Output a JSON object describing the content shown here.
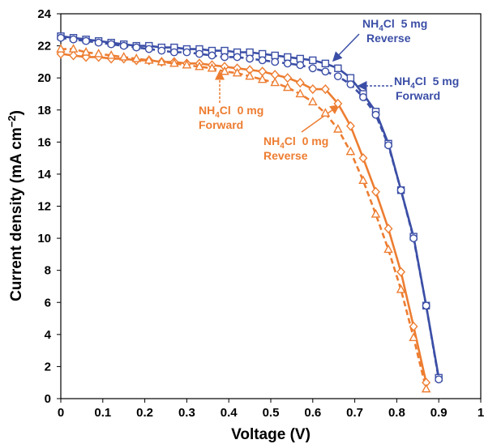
{
  "chart_data": {
    "type": "line",
    "x_label": "Voltage (V)",
    "y_label": [
      "Current density (mA cm",
      "−2",
      ")"
    ],
    "xlim": [
      0,
      1
    ],
    "xticks": [
      0,
      0.1,
      0.2,
      0.3,
      0.4,
      0.5,
      0.6,
      0.7,
      0.8,
      0.9,
      1
    ],
    "ylim": [
      0,
      24
    ],
    "yticks": [
      0,
      2,
      4,
      6,
      8,
      10,
      12,
      14,
      16,
      18,
      20,
      22,
      24
    ],
    "series": [
      {
        "marker": "square",
        "dash": false,
        "color": "#3b4ea6",
        "x": [
          0,
          0.03,
          0.06,
          0.09,
          0.12,
          0.15,
          0.18,
          0.21,
          0.24,
          0.27,
          0.3,
          0.33,
          0.36,
          0.39,
          0.42,
          0.45,
          0.48,
          0.51,
          0.54,
          0.57,
          0.6,
          0.63,
          0.66,
          0.69,
          0.72,
          0.75,
          0.78,
          0.81,
          0.84,
          0.87,
          0.9
        ],
        "values": [
          22.6,
          22.5,
          22.4,
          22.3,
          22.2,
          22.1,
          22.0,
          22.0,
          21.9,
          21.9,
          21.8,
          21.8,
          21.7,
          21.7,
          21.6,
          21.6,
          21.5,
          21.4,
          21.3,
          21.2,
          21.1,
          20.9,
          20.6,
          20.0,
          19.0,
          17.9,
          15.9,
          13.0,
          10.1,
          5.8,
          1.3
        ]
      },
      {
        "marker": "circle",
        "dash": true,
        "color": "#3b4ea6",
        "x": [
          0,
          0.03,
          0.06,
          0.09,
          0.12,
          0.15,
          0.18,
          0.21,
          0.24,
          0.27,
          0.3,
          0.33,
          0.36,
          0.39,
          0.42,
          0.45,
          0.48,
          0.51,
          0.54,
          0.57,
          0.6,
          0.63,
          0.66,
          0.69,
          0.72,
          0.75,
          0.78,
          0.81,
          0.84,
          0.87,
          0.9
        ],
        "values": [
          22.5,
          22.4,
          22.3,
          22.2,
          22.1,
          22.0,
          21.9,
          21.8,
          21.7,
          21.6,
          21.6,
          21.5,
          21.4,
          21.3,
          21.3,
          21.2,
          21.1,
          21.0,
          20.9,
          20.8,
          20.6,
          20.4,
          20.1,
          19.6,
          18.8,
          17.7,
          15.8,
          13.0,
          10.0,
          5.8,
          1.2
        ]
      },
      {
        "marker": "diamond",
        "dash": false,
        "color": "#ed7d31",
        "x": [
          0,
          0.03,
          0.06,
          0.09,
          0.12,
          0.15,
          0.18,
          0.21,
          0.24,
          0.27,
          0.3,
          0.33,
          0.36,
          0.39,
          0.42,
          0.45,
          0.48,
          0.51,
          0.54,
          0.57,
          0.6,
          0.63,
          0.66,
          0.69,
          0.72,
          0.75,
          0.78,
          0.81,
          0.84,
          0.87
        ],
        "values": [
          21.5,
          21.4,
          21.3,
          21.3,
          21.2,
          21.2,
          21.1,
          21.1,
          21.0,
          21.0,
          20.9,
          20.9,
          20.8,
          20.7,
          20.6,
          20.5,
          20.4,
          20.2,
          20.0,
          19.7,
          19.3,
          19.3,
          18.4,
          17.0,
          15.0,
          12.9,
          10.6,
          7.9,
          4.5,
          1.0
        ]
      },
      {
        "marker": "triangle",
        "dash": true,
        "color": "#ed7d31",
        "x": [
          0,
          0.03,
          0.06,
          0.09,
          0.12,
          0.15,
          0.18,
          0.21,
          0.24,
          0.27,
          0.3,
          0.33,
          0.36,
          0.39,
          0.42,
          0.45,
          0.48,
          0.51,
          0.54,
          0.57,
          0.6,
          0.63,
          0.66,
          0.69,
          0.72,
          0.75,
          0.78,
          0.81,
          0.84,
          0.87
        ],
        "values": [
          21.8,
          21.8,
          21.6,
          21.5,
          21.4,
          21.3,
          21.2,
          21.1,
          21.0,
          20.9,
          20.8,
          20.7,
          20.6,
          20.4,
          20.3,
          20.1,
          19.9,
          19.7,
          19.4,
          19.0,
          18.5,
          17.8,
          16.8,
          15.4,
          13.6,
          11.5,
          9.3,
          6.8,
          3.8,
          0.6
        ]
      }
    ],
    "annotations": [
      {
        "parts": [
          "NH",
          "4",
          "Cl  5 mg"
        ],
        "line2": "Reverse",
        "color": "#3b4ea6"
      },
      {
        "parts": [
          "NH",
          "4",
          "Cl  5 mg"
        ],
        "line2": "Forward",
        "color": "#3b4ea6"
      },
      {
        "parts": [
          "NH",
          "4",
          "Cl  0 mg"
        ],
        "line2": "Forward",
        "color": "#ed7d31"
      },
      {
        "parts": [
          "NH",
          "4",
          "Cl  0 mg"
        ],
        "line2": "Reverse",
        "color": "#ed7d31"
      }
    ]
  }
}
